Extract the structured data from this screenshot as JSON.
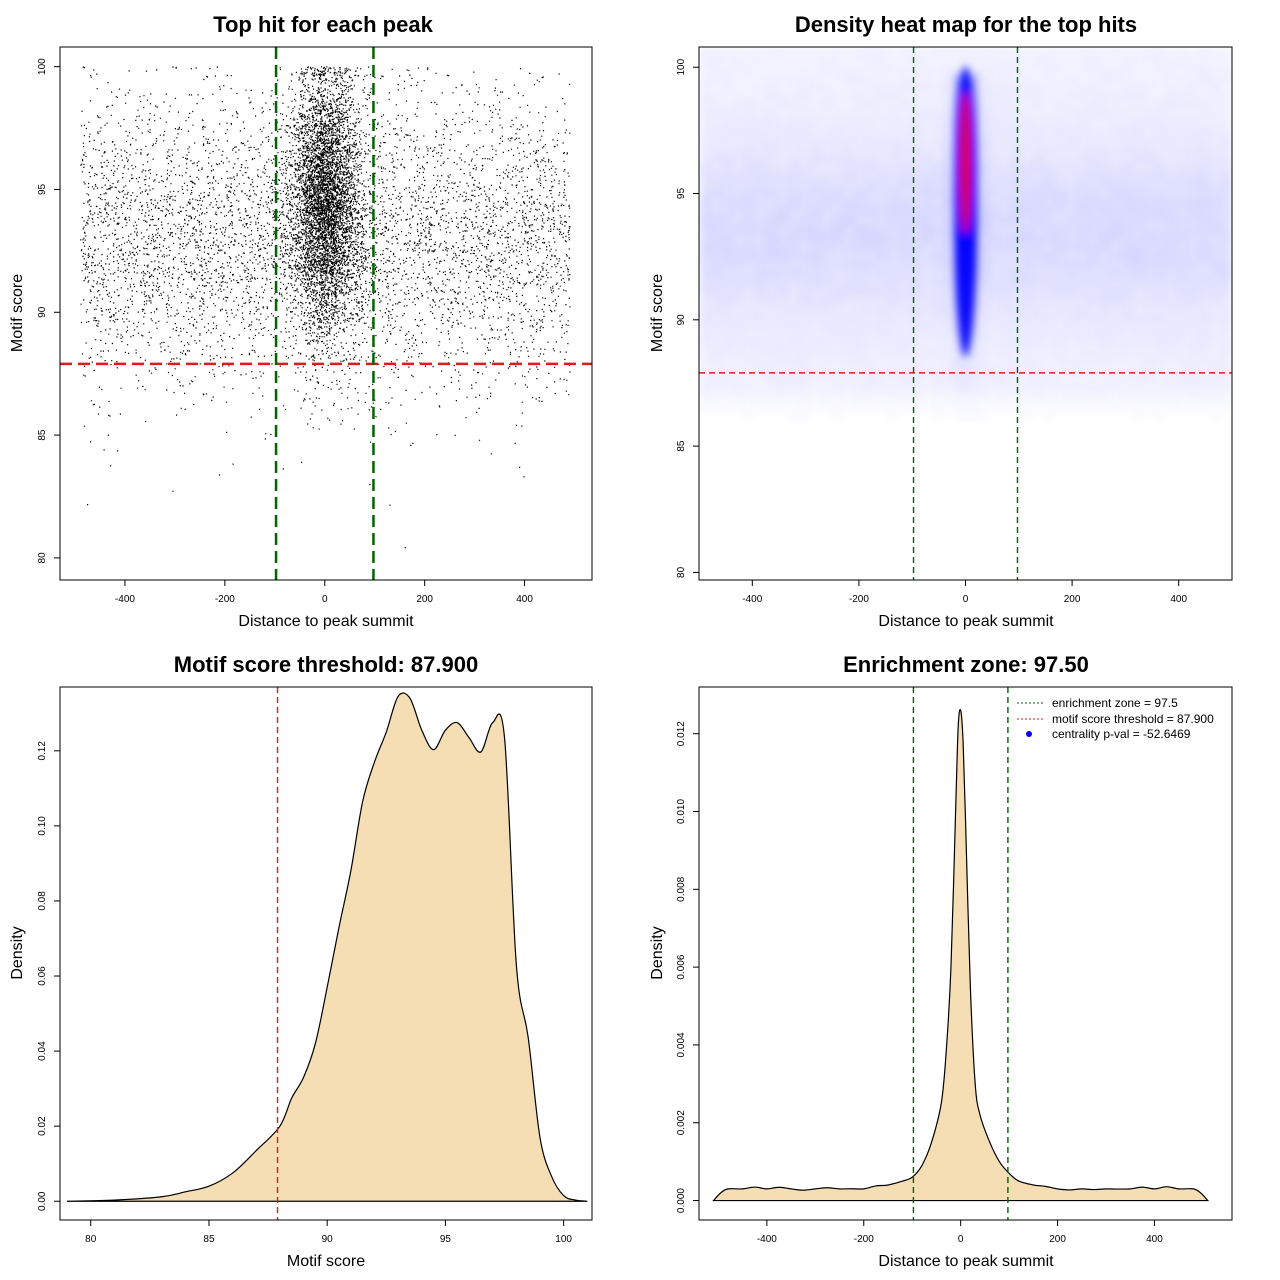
{
  "colors": {
    "threshold_red": "#e31a1c",
    "zone_green": "#006400",
    "fill_wheat": "#f5deb3",
    "heat_blue": "#0000ff",
    "heat_red": "#ff0000",
    "point": "#000000",
    "legend_dot": "#0000ff"
  },
  "chart_data": [
    {
      "id": "scatter",
      "type": "scatter",
      "title": "Top hit for each peak",
      "xlabel": "Distance to peak summit",
      "ylabel": "Motif score",
      "xlim": [
        -530,
        535
      ],
      "ylim": [
        79.1,
        100.8
      ],
      "xticks": [
        -400,
        -200,
        0,
        200,
        400
      ],
      "yticks": [
        80,
        85,
        90,
        95,
        100
      ],
      "xtick_labels": [
        "-400",
        "-200",
        "0",
        "200",
        "400"
      ],
      "ytick_labels": [
        "80",
        "85",
        "90",
        "95",
        "100"
      ],
      "hline": 87.9,
      "vlines": [
        -97.5,
        97.5
      ],
      "point_ranges": {
        "x": [
          -490,
          490
        ],
        "y": [
          79.7,
          100
        ]
      },
      "core_distribution": {
        "center_x": 0,
        "sd_x": 35,
        "y_mean": 94.5,
        "y_sd": 2.6
      },
      "background_distribution": {
        "y_mean": 93.0,
        "y_sd": 3.0
      }
    },
    {
      "id": "heatmap",
      "type": "heatmap",
      "title": "Density heat map for the top hits",
      "xlabel": "Distance to peak summit",
      "ylabel": "Motif score",
      "xlim": [
        -500,
        500
      ],
      "ylim": [
        79.7,
        100.8
      ],
      "xticks": [
        -400,
        -200,
        0,
        200,
        400
      ],
      "yticks": [
        80,
        85,
        90,
        95,
        100
      ],
      "xtick_labels": [
        "-400",
        "-200",
        "0",
        "200",
        "400"
      ],
      "ytick_labels": [
        "80",
        "85",
        "90",
        "95",
        "100"
      ],
      "hline": 87.9,
      "vlines": [
        -97.5,
        97.5
      ],
      "hotspot": {
        "x_center": 0,
        "x_sd": 6,
        "y_center": 95.5,
        "y_sd": 2.4,
        "peak_score": 97.5
      }
    },
    {
      "id": "score_density",
      "type": "area",
      "title": "Motif score threshold: 87.900",
      "xlabel": "Motif score",
      "ylabel": "Density",
      "xlim": [
        78.7,
        101.2
      ],
      "ylim": [
        -0.005,
        0.137
      ],
      "xticks": [
        80,
        85,
        90,
        95,
        100
      ],
      "yticks": [
        0.0,
        0.02,
        0.04,
        0.06,
        0.08,
        0.1,
        0.12
      ],
      "xtick_labels": [
        "80",
        "85",
        "90",
        "95",
        "100"
      ],
      "ytick_labels": [
        "0.00",
        "0.02",
        "0.04",
        "0.06",
        "0.08",
        "0.10",
        "0.12"
      ],
      "vline": 87.9,
      "x": [
        79.0,
        81.0,
        83.0,
        84.0,
        85.0,
        86.0,
        87.0,
        88.0,
        88.5,
        89.0,
        89.5,
        90.0,
        90.5,
        91.0,
        91.5,
        92.0,
        92.5,
        93.0,
        93.5,
        94.0,
        94.5,
        95.0,
        95.5,
        96.0,
        96.5,
        97.0,
        97.5,
        98.0,
        98.5,
        99.0,
        99.5,
        100.0,
        100.5,
        101.0
      ],
      "y": [
        0.0,
        0.0003,
        0.0012,
        0.0025,
        0.004,
        0.0075,
        0.0135,
        0.02,
        0.0275,
        0.033,
        0.042,
        0.057,
        0.073,
        0.088,
        0.1065,
        0.117,
        0.125,
        0.1345,
        0.134,
        0.1255,
        0.1203,
        0.1255,
        0.1275,
        0.1235,
        0.1197,
        0.1275,
        0.1235,
        0.063,
        0.0437,
        0.017,
        0.0065,
        0.0015,
        0.0003,
        0.0
      ]
    },
    {
      "id": "distance_density",
      "type": "area",
      "title": "Enrichment zone: 97.50",
      "xlabel": "Distance to peak summit",
      "ylabel": "Density",
      "xlim": [
        -540,
        560
      ],
      "ylim": [
        -0.0005,
        0.0132
      ],
      "xticks": [
        -400,
        -200,
        0,
        200,
        400
      ],
      "yticks": [
        0.0,
        0.002,
        0.004,
        0.006,
        0.008,
        0.01,
        0.012
      ],
      "xtick_labels": [
        "-400",
        "-200",
        "0",
        "200",
        "400"
      ],
      "ytick_labels": [
        "0.000",
        "0.002",
        "0.004",
        "0.006",
        "0.008",
        "0.010",
        "0.012"
      ],
      "vlines": [
        -97.5,
        97.5
      ],
      "x": [
        -510,
        -495,
        -480,
        -450,
        -400,
        -350,
        -300,
        -250,
        -200,
        -150,
        -120,
        -100,
        -80,
        -60,
        -40,
        -30,
        -20,
        -10,
        -5,
        0,
        5,
        10,
        20,
        30,
        40,
        60,
        80,
        100,
        120,
        150,
        200,
        250,
        300,
        350,
        400,
        450,
        480,
        495,
        510
      ],
      "y": [
        0.0,
        0.0002,
        0.0003,
        0.0003,
        0.0003,
        0.0003,
        0.0003,
        0.0003,
        0.0003,
        0.0004,
        0.0005,
        0.0006,
        0.0009,
        0.0015,
        0.0025,
        0.0038,
        0.006,
        0.0102,
        0.0122,
        0.0126,
        0.0118,
        0.0098,
        0.0055,
        0.003,
        0.0022,
        0.0015,
        0.001,
        0.0007,
        0.0005,
        0.0004,
        0.0003,
        0.0003,
        0.0003,
        0.0003,
        0.0003,
        0.0003,
        0.0003,
        0.0002,
        0.0
      ],
      "legend": [
        {
          "label": "enrichment zone = 97.5",
          "style": "dotted",
          "color": "#006400"
        },
        {
          "label": "motif score threshold = 87.900",
          "style": "dotted",
          "color": "#e31a1c"
        },
        {
          "label": "centrality p-val = -52.6469",
          "style": "dot",
          "color": "#0000ff"
        }
      ]
    }
  ]
}
